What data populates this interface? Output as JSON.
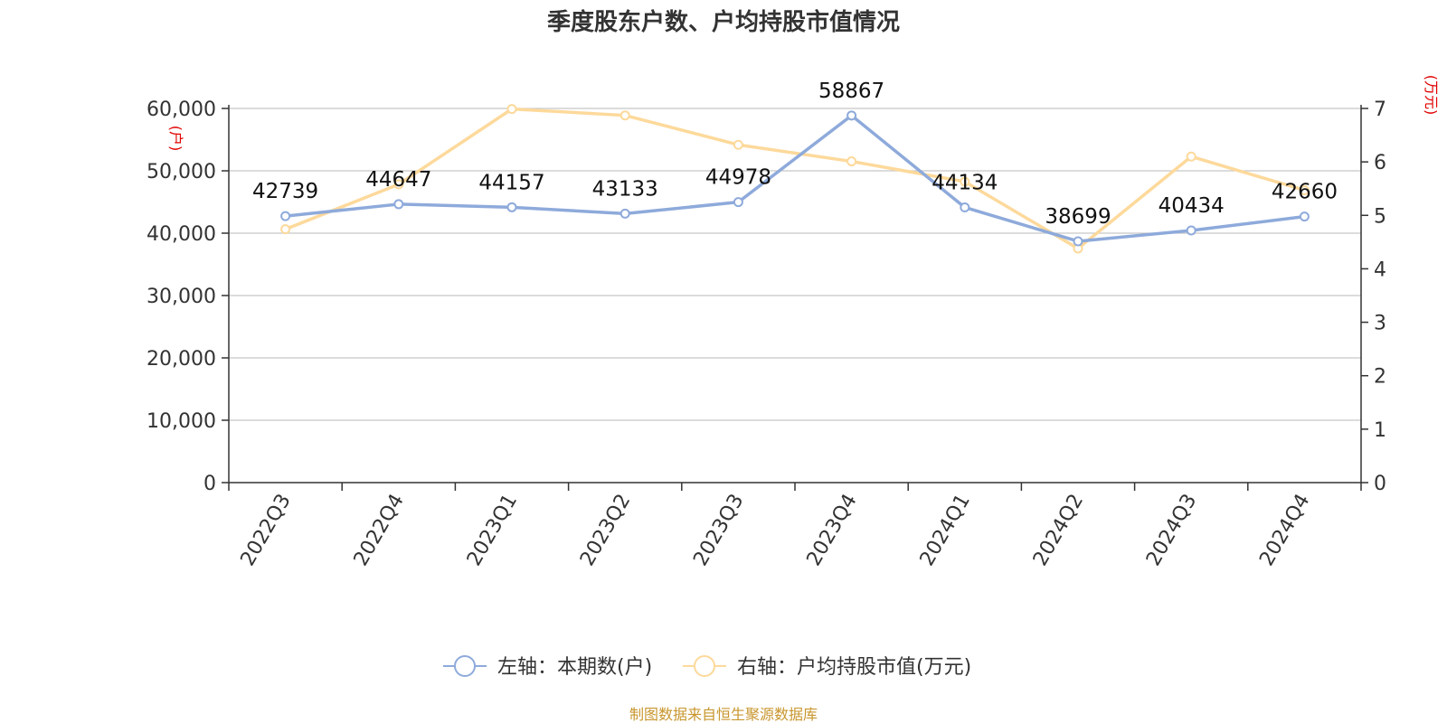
{
  "chart_data": {
    "type": "line",
    "title": "季度股东户数、户均持股市值情况",
    "categories": [
      "2022Q3",
      "2022Q4",
      "2023Q1",
      "2023Q2",
      "2023Q3",
      "2023Q4",
      "2024Q1",
      "2024Q2",
      "2024Q3",
      "2024Q4"
    ],
    "left_axis": {
      "unit": "(户)",
      "range": [
        0,
        60000
      ],
      "ticks": [
        "0",
        "10,000",
        "20,000",
        "30,000",
        "40,000",
        "50,000",
        "60,000"
      ]
    },
    "right_axis": {
      "unit": "(万元)",
      "range": [
        0,
        7
      ],
      "ticks": [
        "0",
        "1",
        "2",
        "3",
        "4",
        "5",
        "6",
        "7"
      ]
    },
    "grid": true,
    "legend_position": "bottom",
    "series": [
      {
        "name": "左轴：本期数(户)",
        "axis": "left",
        "color": "#8eaadb",
        "values": [
          42739,
          44647,
          44157,
          43133,
          44978,
          58867,
          44134,
          38699,
          40434,
          42660
        ],
        "labels": [
          "42739",
          "44647",
          "44157",
          "43133",
          "44978",
          "58867",
          "44134",
          "38699",
          "40434",
          "42660"
        ]
      },
      {
        "name": "右轴：户均持股市值(万元)",
        "axis": "right",
        "color": "#fdd99b",
        "values": [
          4.74,
          5.58,
          6.99,
          6.87,
          6.32,
          6.01,
          5.63,
          4.38,
          6.1,
          5.47
        ]
      }
    ],
    "source": "制图数据来自恒生聚源数据库"
  }
}
